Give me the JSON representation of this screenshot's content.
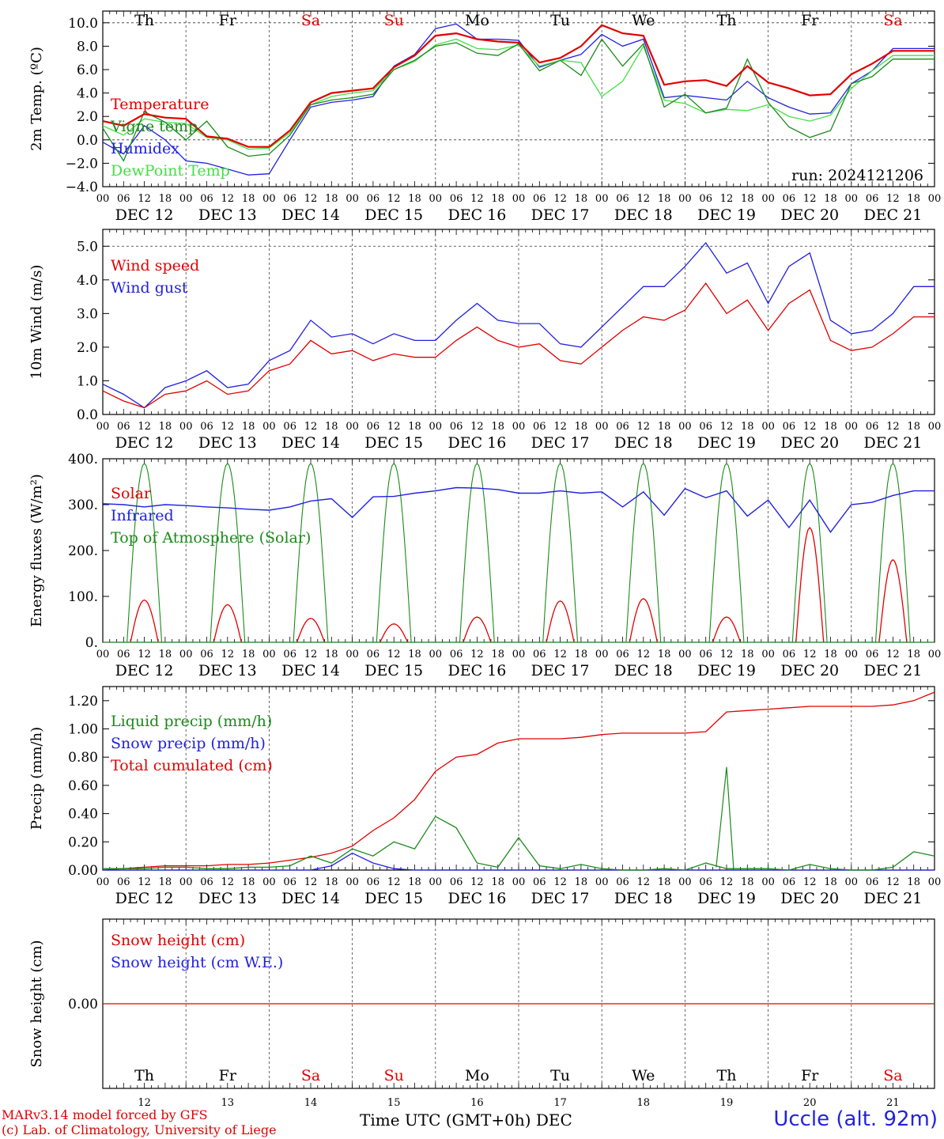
{
  "footer": {
    "model_line": "MARv3.14 model forced by GFS",
    "lab_line": "(c) Lab. of Climatology, University of Liege",
    "xlabel": "Time UTC (GMT+0h)",
    "month": "DEC",
    "station": "Uccle (alt. 92m)"
  },
  "colors": {
    "red": "#e00000",
    "green": "#1a8a1a",
    "blue": "#2020e0",
    "lightgreen": "#44e044"
  },
  "days": {
    "weekdays": [
      "Th",
      "Fr",
      "Sa",
      "Su",
      "Mo",
      "Tu",
      "We",
      "Th",
      "Fr",
      "Sa"
    ],
    "weekend_color": [
      "black",
      "black",
      "red",
      "red",
      "black",
      "black",
      "black",
      "black",
      "black",
      "red"
    ],
    "labels": [
      "DEC 12",
      "DEC 13",
      "DEC 14",
      "DEC 15",
      "DEC 16",
      "DEC 17",
      "DEC 18",
      "DEC 19",
      "DEC 20",
      "DEC 21"
    ],
    "numbers": [
      "12",
      "13",
      "14",
      "15",
      "16",
      "17",
      "18",
      "19",
      "20",
      "21"
    ],
    "hour_ticks": [
      "00",
      "06",
      "12",
      "18"
    ],
    "final_tick": "00"
  },
  "chart_data": [
    {
      "type": "line",
      "id": "temp",
      "ylabel": "2m Temp. (ºC)",
      "ylim": [
        -4,
        11
      ],
      "yticks": [
        "−4.0",
        "−2.0",
        "0.0",
        "2.0",
        "4.0",
        "6.0",
        "8.0",
        "10.0"
      ],
      "ytick_values": [
        -4,
        -2,
        0,
        2,
        4,
        6,
        8,
        10
      ],
      "ref_lines": [
        0,
        10
      ],
      "show_weekdays": true,
      "annotation": "run: 2024121206",
      "x_hours": [
        0,
        6,
        12,
        18,
        24,
        30,
        36,
        42,
        48,
        54,
        60,
        66,
        72,
        78,
        84,
        90,
        96,
        102,
        108,
        114,
        120,
        126,
        132,
        138,
        144,
        150,
        156,
        162,
        168,
        174,
        180,
        186,
        192,
        198,
        204,
        210,
        216,
        222,
        228,
        234,
        240
      ],
      "series": [
        {
          "name": "Temperature",
          "color": "red",
          "values": [
            1.6,
            1.2,
            2.2,
            1.9,
            1.8,
            0.3,
            0.1,
            -0.6,
            -0.6,
            0.8,
            3.2,
            4.0,
            4.2,
            4.4,
            6.2,
            7.2,
            8.9,
            9.1,
            8.6,
            8.4,
            8.3,
            6.6,
            7.0,
            8.0,
            9.8,
            9.1,
            8.9,
            4.7,
            5.0,
            5.1,
            4.6,
            6.3,
            4.9,
            4.4,
            3.8,
            3.9,
            5.6,
            6.5,
            7.6,
            7.6,
            7.6
          ]
        },
        {
          "name": "Vigne temp",
          "color": "green",
          "values": [
            1.0,
            -1.8,
            2.4,
            1.5,
            0.0,
            1.6,
            -0.6,
            -1.4,
            -1.2,
            0.4,
            3.0,
            3.4,
            3.6,
            3.9,
            6.0,
            6.8,
            8.0,
            8.3,
            7.4,
            7.2,
            8.2,
            5.9,
            6.8,
            5.5,
            8.6,
            6.3,
            8.2,
            2.8,
            3.9,
            2.3,
            2.7,
            6.9,
            3.2,
            1.1,
            0.2,
            0.8,
            4.8,
            5.4,
            6.9,
            6.9,
            6.9
          ]
        },
        {
          "name": "Humidex",
          "color": "blue",
          "values": [
            -0.2,
            -1.2,
            1.2,
            0.0,
            -1.8,
            -2.0,
            -2.5,
            -3.0,
            -2.9,
            0.0,
            2.8,
            3.2,
            3.4,
            3.7,
            6.3,
            7.3,
            9.5,
            9.9,
            8.6,
            8.6,
            8.5,
            6.2,
            6.8,
            7.3,
            9.0,
            8.0,
            8.6,
            3.6,
            3.8,
            3.6,
            3.4,
            5.0,
            3.6,
            2.8,
            2.2,
            2.3,
            4.8,
            5.9,
            7.8,
            7.8,
            7.8
          ]
        },
        {
          "name": "DewPoint Temp",
          "color": "lightgreen",
          "values": [
            1.2,
            0.4,
            1.8,
            1.5,
            1.4,
            0.2,
            0.0,
            -0.8,
            -0.7,
            0.6,
            3.0,
            3.7,
            4.0,
            4.2,
            6.0,
            6.7,
            8.1,
            8.6,
            7.8,
            7.7,
            8.1,
            6.3,
            6.8,
            6.6,
            3.7,
            5.0,
            8.0,
            3.4,
            3.1,
            2.3,
            2.6,
            2.5,
            3.0,
            2.0,
            1.6,
            2.1,
            4.4,
            5.9,
            7.2,
            7.2,
            7.2
          ]
        }
      ]
    },
    {
      "type": "line",
      "id": "wind",
      "ylabel": "10m Wind (m/s)",
      "ylim": [
        0,
        5.5
      ],
      "yticks": [
        "0.0",
        "1.0",
        "2.0",
        "3.0",
        "4.0",
        "5.0"
      ],
      "ytick_values": [
        0,
        1,
        2,
        3,
        4,
        5
      ],
      "ref_lines": [
        5
      ],
      "show_weekdays": false,
      "x_hours": [
        0,
        6,
        12,
        18,
        24,
        30,
        36,
        42,
        48,
        54,
        60,
        66,
        72,
        78,
        84,
        90,
        96,
        102,
        108,
        114,
        120,
        126,
        132,
        138,
        144,
        150,
        156,
        162,
        168,
        174,
        180,
        186,
        192,
        198,
        204,
        210,
        216,
        222,
        228,
        234,
        240
      ],
      "series": [
        {
          "name": "Wind speed",
          "color": "red",
          "values": [
            0.7,
            0.4,
            0.2,
            0.6,
            0.7,
            1.0,
            0.6,
            0.7,
            1.3,
            1.5,
            2.2,
            1.8,
            1.9,
            1.6,
            1.8,
            1.7,
            1.7,
            2.2,
            2.6,
            2.2,
            2.0,
            2.1,
            1.6,
            1.5,
            2.0,
            2.5,
            2.9,
            2.8,
            3.1,
            3.9,
            3.0,
            3.4,
            2.5,
            3.3,
            3.7,
            2.2,
            1.9,
            2.0,
            2.4,
            2.9,
            2.9
          ]
        },
        {
          "name": "Wind gust",
          "color": "blue",
          "values": [
            0.9,
            0.6,
            0.2,
            0.8,
            1.0,
            1.3,
            0.8,
            0.9,
            1.6,
            1.9,
            2.8,
            2.3,
            2.4,
            2.1,
            2.4,
            2.2,
            2.2,
            2.8,
            3.3,
            2.8,
            2.7,
            2.7,
            2.1,
            2.0,
            2.6,
            3.2,
            3.8,
            3.8,
            4.4,
            5.1,
            4.2,
            4.5,
            3.3,
            4.4,
            4.8,
            2.8,
            2.4,
            2.5,
            3.0,
            3.8,
            3.8
          ]
        }
      ]
    },
    {
      "type": "line",
      "id": "energy",
      "ylabel": "Energy fluxes (W/m²)",
      "ylim": [
        0,
        400
      ],
      "yticks": [
        "0.",
        "100.",
        "200.",
        "300.",
        "400."
      ],
      "ytick_values": [
        0,
        100,
        200,
        300,
        400
      ],
      "ref_lines": [],
      "show_weekdays": false,
      "solar_peaks": [
        92,
        82,
        52,
        40,
        55,
        90,
        95,
        55,
        250,
        180
      ],
      "toa_peak": 390,
      "infrared": {
        "x_hours": [
          0,
          6,
          12,
          18,
          24,
          30,
          36,
          42,
          48,
          54,
          60,
          66,
          72,
          78,
          84,
          90,
          96,
          102,
          108,
          114,
          120,
          126,
          132,
          138,
          144,
          150,
          156,
          162,
          168,
          174,
          180,
          186,
          192,
          198,
          204,
          210,
          216,
          222,
          228,
          234,
          240
        ],
        "values": [
          302,
          300,
          295,
          300,
          298,
          295,
          293,
          290,
          288,
          295,
          308,
          313,
          272,
          317,
          318,
          325,
          330,
          337,
          336,
          333,
          325,
          325,
          330,
          325,
          328,
          295,
          328,
          277,
          335,
          315,
          330,
          275,
          310,
          250,
          310,
          240,
          300,
          305,
          320,
          330,
          330
        ]
      },
      "series": [
        {
          "name": "Solar",
          "color": "red"
        },
        {
          "name": "Infrared",
          "color": "blue"
        },
        {
          "name": "Top of Atmosphere (Solar)",
          "color": "green"
        }
      ]
    },
    {
      "type": "line",
      "id": "precip",
      "ylabel": "Precip (mm/h)",
      "ylim": [
        0,
        1.3
      ],
      "yticks": [
        "0.00",
        "0.20",
        "0.40",
        "0.60",
        "0.80",
        "1.00",
        "1.20"
      ],
      "ytick_values": [
        0,
        0.2,
        0.4,
        0.6,
        0.8,
        1.0,
        1.2
      ],
      "ref_lines": [],
      "show_weekdays": false,
      "x_hours": [
        0,
        6,
        12,
        18,
        24,
        30,
        36,
        42,
        48,
        54,
        60,
        66,
        72,
        78,
        84,
        90,
        96,
        102,
        108,
        114,
        120,
        126,
        132,
        138,
        144,
        150,
        156,
        162,
        168,
        174,
        180,
        186,
        192,
        198,
        204,
        210,
        216,
        222,
        228,
        234,
        240
      ],
      "series": [
        {
          "name": "Liquid precip (mm/h)",
          "color": "green",
          "values": [
            0.01,
            0.01,
            0.01,
            0.02,
            0.02,
            0.01,
            0.01,
            0.02,
            0.02,
            0.03,
            0.1,
            0.05,
            0.15,
            0.1,
            0.2,
            0.15,
            0.38,
            0.3,
            0.05,
            0.02,
            0.23,
            0.03,
            0.01,
            0.04,
            0.01,
            0.0,
            0.0,
            0.01,
            0.0,
            0.05,
            0.01,
            0.01,
            0.01,
            0.0,
            0.04,
            0.01,
            0.0,
            0.0,
            0.02,
            0.13,
            0.1
          ]
        },
        {
          "name": "Snow precip (mm/h)",
          "color": "blue",
          "values": [
            0,
            0,
            0,
            0,
            0,
            0,
            0,
            0,
            0,
            0,
            0,
            0.03,
            0.12,
            0.05,
            0.01,
            0,
            0,
            0,
            0,
            0,
            0,
            0,
            0,
            0,
            0,
            0,
            0,
            0,
            0,
            0,
            0,
            0,
            0,
            0,
            0,
            0,
            0,
            0,
            0,
            0,
            0
          ]
        },
        {
          "name": "Total cumulated (cm)",
          "color": "red",
          "values": [
            0.0,
            0.01,
            0.02,
            0.03,
            0.03,
            0.03,
            0.04,
            0.04,
            0.05,
            0.07,
            0.09,
            0.12,
            0.17,
            0.28,
            0.37,
            0.5,
            0.7,
            0.8,
            0.82,
            0.9,
            0.93,
            0.93,
            0.93,
            0.94,
            0.96,
            0.97,
            0.97,
            0.97,
            0.97,
            0.98,
            1.12,
            1.13,
            1.14,
            1.15,
            1.16,
            1.16,
            1.16,
            1.16,
            1.17,
            1.2,
            1.26
          ]
        }
      ],
      "precip_spike": {
        "hour": 180,
        "value": 0.73
      }
    },
    {
      "type": "line",
      "id": "snow",
      "ylabel": "Snow height (cm)",
      "ylim": [
        -1,
        1
      ],
      "yticks": [
        "0.00"
      ],
      "ytick_values": [
        0
      ],
      "ref_lines": [],
      "show_weekdays": true,
      "series": [
        {
          "name": "Snow height (cm)",
          "color": "red",
          "values": [
            0,
            0
          ]
        },
        {
          "name": "Snow height (cm W.E.)",
          "color": "blue"
        }
      ]
    }
  ]
}
